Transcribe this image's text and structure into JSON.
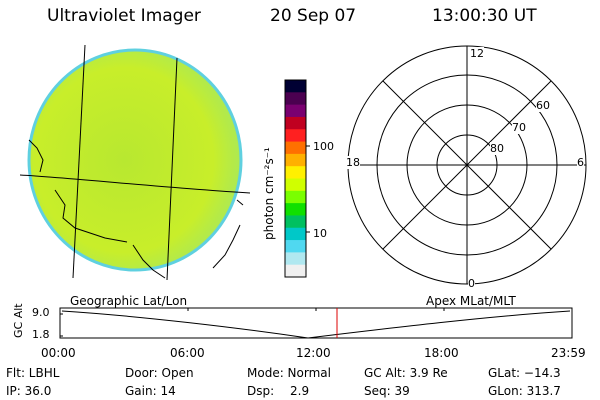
{
  "header": {
    "instrument": "Ultraviolet Imager",
    "date": "20 Sep 07",
    "time": "13:00:30 UT"
  },
  "colorbar": {
    "unit_label": "photon cm⁻²s⁻¹",
    "ticks": [
      "100",
      "10"
    ],
    "colors": [
      "#000033",
      "#4b0050",
      "#7a0070",
      "#c00020",
      "#ff2020",
      "#ff7000",
      "#ffb000",
      "#fff000",
      "#d0ff00",
      "#7aff00",
      "#10e000",
      "#00c060",
      "#00c8c8",
      "#50d8f0",
      "#b0e8f0",
      "#f0f0f0"
    ]
  },
  "polar_plot": {
    "mlt_labels": [
      "12",
      "18",
      "6",
      "0"
    ],
    "lat_labels": [
      "60",
      "70",
      "80"
    ]
  },
  "timeline": {
    "left_label": "Geographic Lat/Lon",
    "right_label": "Apex MLat/MLT",
    "y_axis_label": "GC Alt",
    "y_ticks": [
      "9.0",
      "1.8"
    ],
    "x_ticks": [
      "00:00",
      "06:00",
      "12:00",
      "18:00",
      "23:59"
    ],
    "marker_time": "13:00"
  },
  "footer": {
    "flt": "Flt: LBHL",
    "door": "Door: Open",
    "mode": "Mode: Normal",
    "gc_alt": "GC Alt: 3.9 Re",
    "glat": "GLat: −14.3",
    "ip": "IP: 36.0",
    "gain": "Gain: 14",
    "dsp_label": "Dsp:",
    "dsp_value": "2.9",
    "seq": "Seq: 39",
    "glon": "GLon: 313.7"
  },
  "colors": {
    "disk_fill": "#c8ee2a",
    "disk_edge": "#5fd0e0",
    "marker": "#dd0000"
  }
}
